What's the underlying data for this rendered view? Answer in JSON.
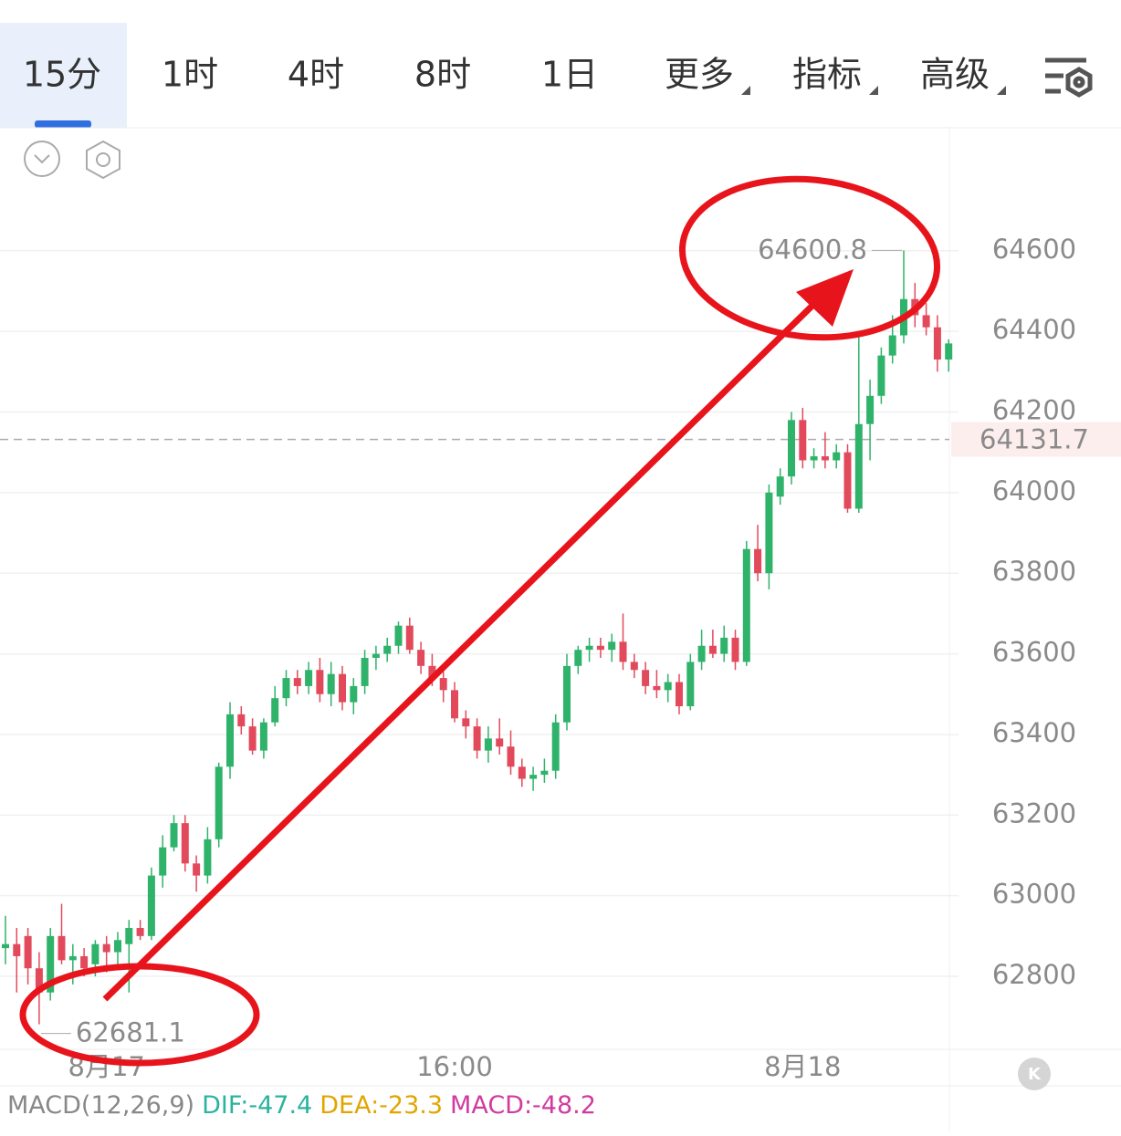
{
  "tabs": [
    "15分",
    "1时",
    "4时",
    "8时",
    "1日",
    "更多",
    "指标",
    "高级"
  ],
  "chart_data": {
    "type": "candlestick",
    "up_color": "#2fb36a",
    "down_color": "#e24a5c",
    "ylim": [
      62619,
      64905
    ],
    "yticks": [
      62800,
      63000,
      63200,
      63400,
      63600,
      63800,
      64000,
      64200,
      64400,
      64600
    ],
    "grid": true,
    "last_price": 64131.7,
    "categories": [
      null,
      null,
      null,
      null,
      null,
      null,
      null,
      null,
      null,
      "8月17",
      null,
      null,
      null,
      null,
      null,
      null,
      null,
      null,
      null,
      null,
      null,
      null,
      null,
      null,
      null,
      null,
      null,
      null,
      null,
      null,
      null,
      null,
      null,
      null,
      null,
      null,
      null,
      null,
      null,
      null,
      "16:00",
      null,
      null,
      null,
      null,
      null,
      null,
      null,
      null,
      null,
      null,
      null,
      null,
      null,
      null,
      null,
      null,
      null,
      null,
      null,
      null,
      null,
      null,
      null,
      null,
      null,
      null,
      null,
      null,
      null,
      null,
      "8月18",
      null,
      null,
      null,
      null,
      null,
      null,
      null,
      null,
      null,
      null,
      null,
      null,
      null
    ],
    "ohlc": [
      [
        62870,
        62950,
        62830,
        62880
      ],
      [
        62880,
        62920,
        62760,
        62850
      ],
      [
        62900,
        62920,
        62780,
        62820
      ],
      [
        62820,
        62860,
        62681.1,
        62760
      ],
      [
        62760,
        62920,
        62740,
        62900
      ],
      [
        62900,
        62980,
        62830,
        62840
      ],
      [
        62840,
        62880,
        62780,
        62850
      ],
      [
        62850,
        62870,
        62800,
        62820
      ],
      [
        62830,
        62890,
        62800,
        62880
      ],
      [
        62880,
        62900,
        62810,
        62860
      ],
      [
        62860,
        62910,
        62830,
        62890
      ],
      [
        62880,
        62940,
        62760,
        62920
      ],
      [
        62920,
        62940,
        62890,
        62900
      ],
      [
        62900,
        63070,
        62890,
        63050
      ],
      [
        63050,
        63150,
        63020,
        63120
      ],
      [
        63120,
        63200,
        63110,
        63180
      ],
      [
        63180,
        63200,
        63060,
        63080
      ],
      [
        63080,
        63100,
        63010,
        63050
      ],
      [
        63050,
        63170,
        63030,
        63140
      ],
      [
        63140,
        63330,
        63120,
        63320
      ],
      [
        63320,
        63480,
        63290,
        63450
      ],
      [
        63450,
        63470,
        63400,
        63420
      ],
      [
        63420,
        63440,
        63350,
        63360
      ],
      [
        63360,
        63440,
        63340,
        63430
      ],
      [
        63430,
        63520,
        63420,
        63490
      ],
      [
        63490,
        63560,
        63470,
        63540
      ],
      [
        63540,
        63560,
        63500,
        63520
      ],
      [
        63520,
        63580,
        63500,
        63560
      ],
      [
        63560,
        63590,
        63480,
        63500
      ],
      [
        63500,
        63580,
        63470,
        63550
      ],
      [
        63550,
        63570,
        63460,
        63480
      ],
      [
        63480,
        63540,
        63450,
        63520
      ],
      [
        63520,
        63610,
        63500,
        63590
      ],
      [
        63590,
        63620,
        63560,
        63600
      ],
      [
        63600,
        63640,
        63580,
        63620
      ],
      [
        63620,
        63680,
        63600,
        63670
      ],
      [
        63670,
        63690,
        63600,
        63610
      ],
      [
        63610,
        63630,
        63550,
        63570
      ],
      [
        63570,
        63600,
        63520,
        63540
      ],
      [
        63540,
        63560,
        63480,
        63510
      ],
      [
        63510,
        63530,
        63430,
        63440
      ],
      [
        63440,
        63460,
        63390,
        63420
      ],
      [
        63420,
        63440,
        63340,
        63360
      ],
      [
        63360,
        63420,
        63330,
        63390
      ],
      [
        63390,
        63440,
        63350,
        63370
      ],
      [
        63370,
        63410,
        63300,
        63320
      ],
      [
        63320,
        63340,
        63270,
        63290
      ],
      [
        63290,
        63320,
        63260,
        63300
      ],
      [
        63300,
        63340,
        63280,
        63310
      ],
      [
        63310,
        63450,
        63290,
        63430
      ],
      [
        63430,
        63600,
        63410,
        63570
      ],
      [
        63570,
        63620,
        63550,
        63610
      ],
      [
        63610,
        63640,
        63580,
        63620
      ],
      [
        63620,
        63640,
        63590,
        63610
      ],
      [
        63610,
        63650,
        63580,
        63630
      ],
      [
        63630,
        63700,
        63560,
        63580
      ],
      [
        63580,
        63600,
        63540,
        63560
      ],
      [
        63560,
        63580,
        63500,
        63520
      ],
      [
        63520,
        63560,
        63490,
        63510
      ],
      [
        63510,
        63550,
        63480,
        63530
      ],
      [
        63530,
        63550,
        63450,
        63470
      ],
      [
        63470,
        63600,
        63460,
        63580
      ],
      [
        63580,
        63660,
        63560,
        63620
      ],
      [
        63620,
        63660,
        63590,
        63600
      ],
      [
        63600,
        63670,
        63580,
        63640
      ],
      [
        63640,
        63660,
        63560,
        63580
      ],
      [
        63580,
        63880,
        63570,
        63860
      ],
      [
        63860,
        63920,
        63780,
        63800
      ],
      [
        63800,
        64020,
        63760,
        64000
      ],
      [
        63990,
        64060,
        63970,
        64040
      ],
      [
        64040,
        64200,
        64020,
        64180
      ],
      [
        64180,
        64210,
        64060,
        64080
      ],
      [
        64080,
        64110,
        64060,
        64090
      ],
      [
        64090,
        64150,
        64060,
        64080
      ],
      [
        64080,
        64120,
        64060,
        64100
      ],
      [
        64100,
        64120,
        63950,
        63960
      ],
      [
        63960,
        64390,
        63950,
        64170
      ],
      [
        64170,
        64280,
        64080,
        64240
      ],
      [
        64240,
        64360,
        64220,
        64340
      ],
      [
        64340,
        64440,
        64320,
        64390
      ],
      [
        64390,
        64600.8,
        64370,
        64480
      ],
      [
        64480,
        64520,
        64410,
        64440
      ],
      [
        64440,
        64470,
        64390,
        64410
      ],
      [
        64410,
        64440,
        64300,
        64330
      ],
      [
        64330,
        64380,
        64300,
        64370
      ]
    ],
    "max_index": 80,
    "min_index": 3
  },
  "macd": {
    "name": "MACD(12,26,9)",
    "dif": "DIF:-47.4",
    "dea": "DEA:-23.3",
    "macd": "MACD:-48.2"
  }
}
